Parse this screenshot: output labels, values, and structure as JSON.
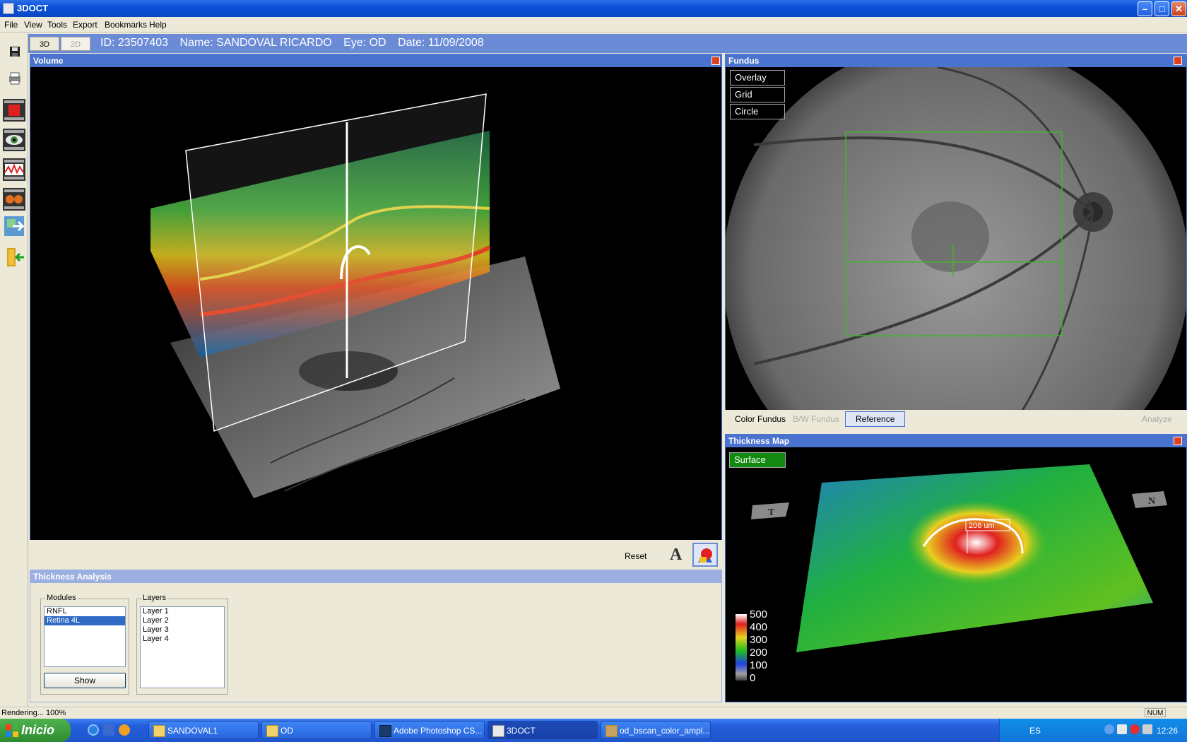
{
  "window": {
    "title": "3DOCT"
  },
  "menu": [
    "File",
    "View",
    "Tools",
    "Export",
    "Bookmarks",
    "Help"
  ],
  "view_tabs": {
    "tab_3d": "3D",
    "tab_2d": "2D"
  },
  "patient": {
    "id": "ID: 23507403",
    "name": "Name: SANDOVAL  RICARDO",
    "eye": "Eye: OD",
    "date": "Date: 11/09/2008"
  },
  "volume": {
    "title": "Volume",
    "reset_label": "Reset",
    "text_tool_label": "A"
  },
  "fundus": {
    "title": "Fundus",
    "buttons": [
      "Overlay",
      "Grid",
      "Circle"
    ],
    "bottom_tabs": [
      "Color Fundus",
      "B/W Fundus",
      "Reference"
    ],
    "analyze_label": "Analyze"
  },
  "thickness_analysis": {
    "title": "Thickness Analysis",
    "modules_label": "Modules",
    "modules": [
      "RNFL",
      "Retina 4L"
    ],
    "selected_module": "Retina 4L",
    "layers_label": "Layers",
    "layers": [
      "Layer 1",
      "Layer 2",
      "Layer 3",
      "Layer 4"
    ],
    "show_label": "Show"
  },
  "thickness_map": {
    "title": "Thickness Map",
    "surface_label": "Surface",
    "marker_T": "T",
    "marker_N": "N",
    "annotation": "206 um",
    "legend": [
      "500",
      "400",
      "300",
      "200",
      "100",
      "0"
    ]
  },
  "status": {
    "text": "Rendering... 100%",
    "num": "NUM"
  },
  "taskbar": {
    "start_label": "Inicio",
    "items": [
      "SANDOVAL1",
      "OD",
      "Adobe Photoshop CS...",
      "3DOCT",
      "od_bscan_color_ampl..."
    ],
    "lang": "ES",
    "clock": "12:26"
  },
  "colors": {
    "accent": "#4a73d0",
    "titlebar": "#0b51d8",
    "surface_green": "#128a12"
  }
}
